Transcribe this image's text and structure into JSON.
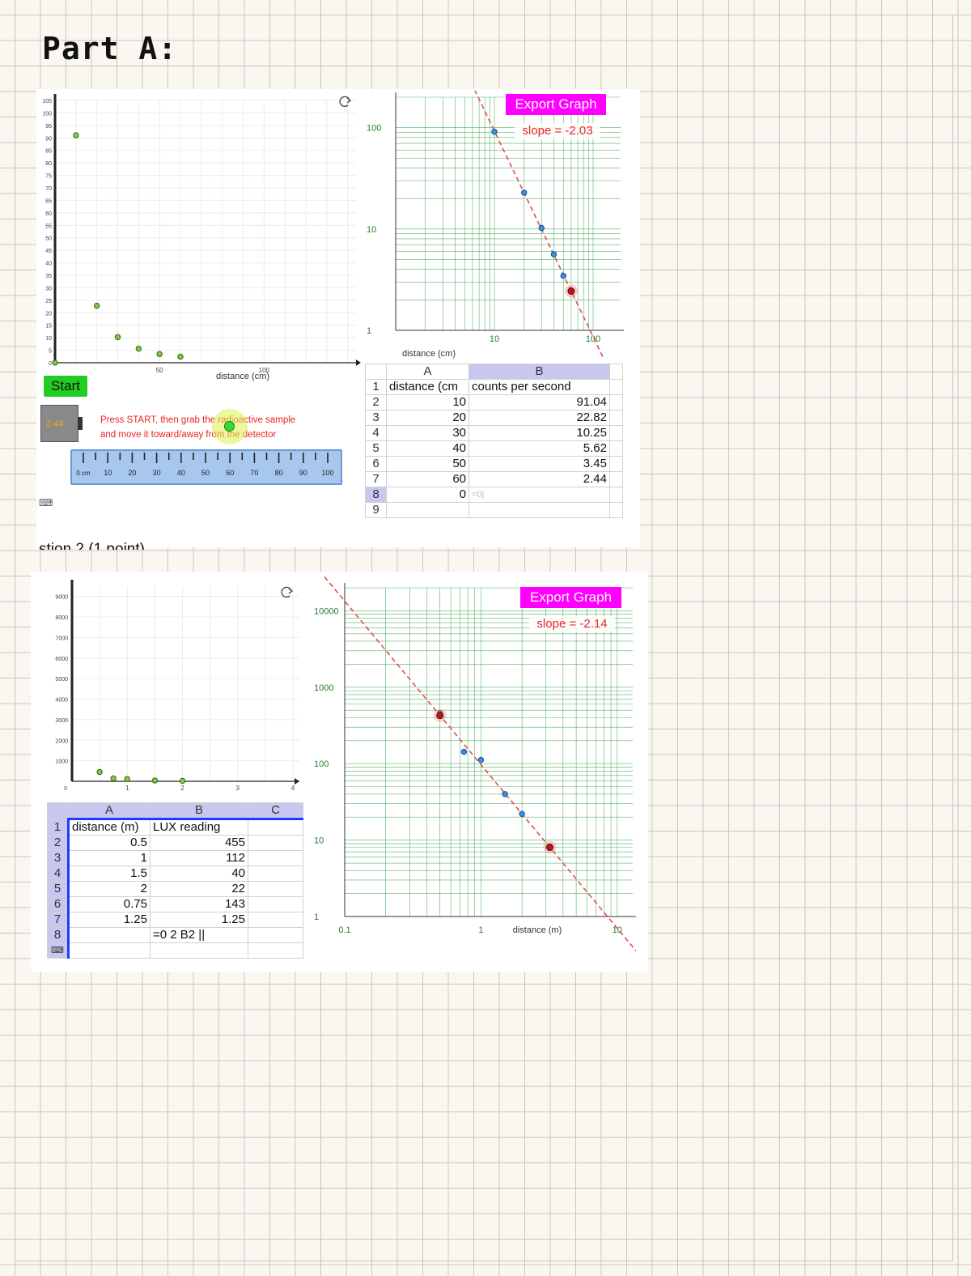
{
  "page_title": "Part A:",
  "cut_text": "stion 2 (1 point)",
  "top": {
    "scatter": {
      "y_ticks": [
        "105",
        "100",
        "95",
        "90",
        "85",
        "80",
        "75",
        "70",
        "65",
        "60",
        "55",
        "50",
        "45",
        "40",
        "35",
        "30",
        "25",
        "20",
        "15",
        "10",
        "5",
        "0"
      ],
      "x_ticks": [
        "50",
        "100"
      ],
      "xlabel": "distance (cm)"
    },
    "start_label": "Start",
    "detector_reading": "2.44",
    "instructions": [
      "Press START, then grab the radioactive sample",
      "and move it toward/away from the detector"
    ],
    "ruler_labels": [
      "0 cm",
      "10",
      "20",
      "30",
      "40",
      "50",
      "60",
      "70",
      "80",
      "90",
      "100"
    ],
    "loglog": {
      "y_ticks": [
        "100",
        "10",
        "1"
      ],
      "x_ticks": [
        "10",
        "100"
      ],
      "xlabel": "distance (cm)",
      "export_label": "Export Graph",
      "slope_text": "slope = -2.03"
    },
    "sheet": {
      "col_headers": [
        "A",
        "B"
      ],
      "row_numbers": [
        "1",
        "2",
        "3",
        "4",
        "5",
        "6",
        "7",
        "8",
        "9"
      ],
      "header_row": [
        "distance (cm",
        "counts per second"
      ],
      "rows": [
        [
          "10",
          "91.04"
        ],
        [
          "20",
          "22.82"
        ],
        [
          "30",
          "10.25"
        ],
        [
          "40",
          "5.62"
        ],
        [
          "50",
          "3.45"
        ],
        [
          "60",
          "2.44"
        ]
      ],
      "row8": {
        "a": "0",
        "b": "=0|"
      }
    }
  },
  "bottom": {
    "scatter": {
      "y_ticks": [
        "9000",
        "8000",
        "7000",
        "6000",
        "5000",
        "4000",
        "3000",
        "2000",
        "1000",
        "0"
      ],
      "x_ticks": [
        "1",
        "2",
        "3",
        "4"
      ]
    },
    "sheet": {
      "col_headers": [
        "A",
        "B",
        "C"
      ],
      "row_numbers": [
        "1",
        "2",
        "3",
        "4",
        "5",
        "6",
        "7",
        "8"
      ],
      "header_row": [
        "distance (m)",
        "LUX reading"
      ],
      "rows": [
        [
          "0.5",
          "455"
        ],
        [
          "1",
          "112"
        ],
        [
          "1.5",
          "40"
        ],
        [
          "2",
          "22"
        ],
        [
          "0.75",
          "143"
        ],
        [
          "1.25",
          "1.25"
        ]
      ],
      "row8": {
        "b": "=0 2 B2 ||"
      }
    },
    "loglog": {
      "y_ticks": [
        "10000",
        "1000",
        "100",
        "10",
        "1"
      ],
      "x_ticks": [
        "0.1",
        "1",
        "10"
      ],
      "xlabel": "distance (m)",
      "export_label": "Export Graph",
      "slope_text": "slope = -2.14"
    }
  },
  "chart_data": [
    {
      "type": "scatter",
      "xlabel": "distance (cm)",
      "ylabel": "",
      "xlim": [
        0,
        120
      ],
      "ylim": [
        0,
        105
      ],
      "x": [
        10,
        20,
        30,
        40,
        50,
        60
      ],
      "y": [
        91.04,
        22.82,
        10.25,
        5.62,
        3.45,
        2.44
      ]
    },
    {
      "type": "scatter",
      "xscale": "log",
      "yscale": "log",
      "xlabel": "distance (cm)",
      "xlim": [
        1,
        190
      ],
      "ylim": [
        1,
        200
      ],
      "x": [
        10,
        20,
        30,
        40,
        50,
        60
      ],
      "y": [
        91.04,
        22.82,
        10.25,
        5.62,
        3.45,
        2.44
      ],
      "fit_line": {
        "slope": -2.03,
        "label": "slope = -2.03"
      }
    },
    {
      "type": "scatter",
      "xlabel": "",
      "ylabel": "",
      "xlim": [
        0,
        4
      ],
      "ylim": [
        0,
        9500
      ],
      "x": [
        0.5,
        0.75,
        1,
        1.5,
        2
      ],
      "y": [
        455,
        143,
        112,
        40,
        22
      ]
    },
    {
      "type": "scatter",
      "xscale": "log",
      "yscale": "log",
      "xlabel": "distance (m)",
      "xlim": [
        0.1,
        13
      ],
      "ylim": [
        1,
        20000
      ],
      "x": [
        0.5,
        0.75,
        1,
        1.5,
        2
      ],
      "y": [
        455,
        143,
        112,
        40,
        22
      ],
      "fit_line": {
        "slope": -2.14,
        "label": "slope = -2.14"
      }
    }
  ]
}
